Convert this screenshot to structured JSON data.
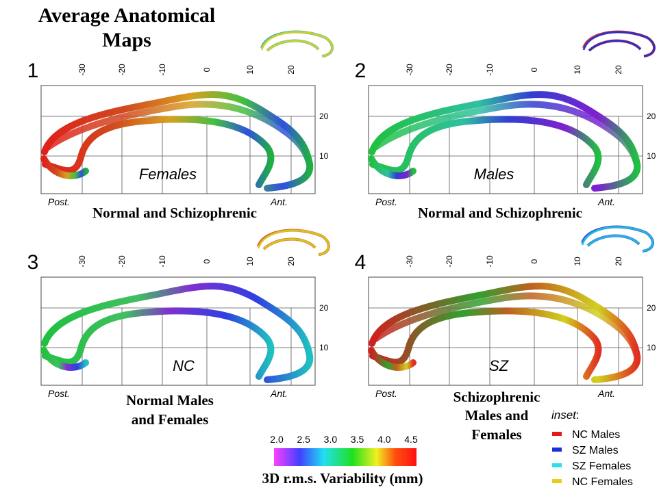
{
  "title": [
    "Average Anatomical",
    "Maps"
  ],
  "panels": [
    {
      "number": "1",
      "label": "Females",
      "x_ticks": [
        "-30",
        "-20",
        "-10",
        "0",
        "10",
        "20"
      ],
      "y_ticks": [
        "20",
        "10"
      ],
      "posterior": "Post.",
      "anterior": "Ant.",
      "caption": [
        "Normal and Schizophrenic"
      ]
    },
    {
      "number": "2",
      "label": "Males",
      "x_ticks": [
        "-30",
        "-20",
        "-10",
        "0",
        "10",
        "20"
      ],
      "y_ticks": [
        "20",
        "10"
      ],
      "posterior": "Post.",
      "anterior": "Ant.",
      "caption": [
        "Normal and Schizophrenic"
      ]
    },
    {
      "number": "3",
      "label": "NC",
      "x_ticks": [
        "-30",
        "-20",
        "-10",
        "0",
        "10",
        "20"
      ],
      "y_ticks": [
        "20",
        "10"
      ],
      "posterior": "Post.",
      "anterior": "Ant.",
      "caption": [
        "Normal Males",
        "and Females"
      ]
    },
    {
      "number": "4",
      "label": "SZ",
      "x_ticks": [
        "-30",
        "-20",
        "-10",
        "0",
        "10",
        "20"
      ],
      "y_ticks": [
        "20",
        "10"
      ],
      "posterior": "Post.",
      "anterior": "Ant.",
      "caption": [
        "Schizophrenic",
        "Males and",
        "Females"
      ]
    }
  ],
  "colorbar": {
    "ticks": [
      "2.0",
      "2.5",
      "3.0",
      "3.5",
      "4.0",
      "4.5"
    ],
    "title": "3D r.m.s. Variability (mm)"
  },
  "inset_legend": {
    "title": "inset",
    "items": [
      {
        "label": "NC Males",
        "color": "#e8191a"
      },
      {
        "label": "SZ Males",
        "color": "#1a2ee0"
      },
      {
        "label": "SZ Females",
        "color": "#2ee0e6"
      },
      {
        "label": "NC Females",
        "color": "#e6cf1a"
      }
    ]
  }
}
